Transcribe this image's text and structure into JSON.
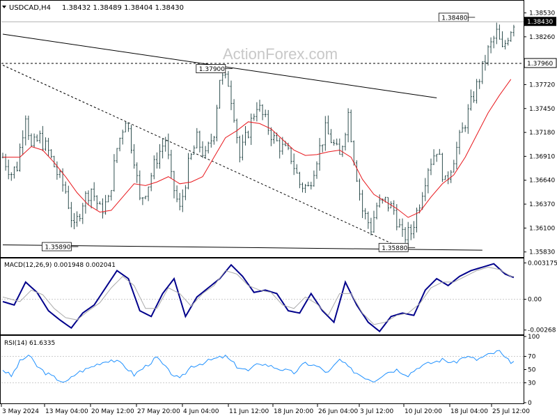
{
  "header": {
    "symbol": "USDCAD,H4",
    "ohlc": "1.38432 1.38489 1.38404 1.38430",
    "dropdown_icon": "triangle-down-icon"
  },
  "watermark": "ActionForex.com",
  "colors": {
    "candle": "#2f4f4f",
    "ma": "#e8171c",
    "macd": "#00008b",
    "signal": "#a9a9a9",
    "rsi": "#1e90ff",
    "level_line": "#000000"
  },
  "chart_data": [
    {
      "type": "candlestick",
      "title": "USDCAD,H4",
      "x_ticks": [
        "3 May 2024",
        "13 May 04:00",
        "20 May 12:00",
        "27 May 20:00",
        "4 Jun 04:00",
        "11 Jun 12:00",
        "18 Jun 20:00",
        "26 Jun 04:00",
        "3 Jul 12:00",
        "10 Jul 20:00",
        "18 Jul 04:00",
        "25 Jul 12:00"
      ],
      "y_ticks": [
        "1.38530",
        "1.38260",
        "1.37720",
        "1.37450",
        "1.37180",
        "1.36910",
        "1.36640",
        "1.36370",
        "1.36100",
        "1.35830"
      ],
      "ylim": [
        1.3578,
        1.3866
      ],
      "price_tag": "1.38430",
      "current_price": 1.3843,
      "hline": {
        "value": 1.3796,
        "label": "1.37960"
      },
      "annotations": [
        {
          "label": "1.38480",
          "x": 163,
          "price": 1.3848
        },
        {
          "label": "1.37900",
          "x": 78,
          "price": 1.379
        },
        {
          "label": "1.35890",
          "x": 24,
          "price": 1.3589
        },
        {
          "label": "1.35880",
          "x": 142,
          "price": 1.3588
        }
      ],
      "trendlines": [
        {
          "style": "solid",
          "points": [
            [
              0,
              1.3829
            ],
            [
              152,
              1.3757
            ]
          ]
        },
        {
          "style": "dashed",
          "points": [
            [
              0,
              1.3794
            ],
            [
              138,
              1.359
            ]
          ]
        },
        {
          "style": "solid",
          "points": [
            [
              0,
              1.3591
            ],
            [
              168,
              1.3585
            ]
          ]
        }
      ],
      "close_path": [
        [
          0,
          1.369
        ],
        [
          3,
          1.3672
        ],
        [
          5,
          1.368
        ],
        [
          8,
          1.374
        ],
        [
          10,
          1.37
        ],
        [
          13,
          1.3712
        ],
        [
          16,
          1.3696
        ],
        [
          19,
          1.3672
        ],
        [
          22,
          1.3652
        ],
        [
          25,
          1.3608
        ],
        [
          28,
          1.364
        ],
        [
          31,
          1.3655
        ],
        [
          34,
          1.363
        ],
        [
          37,
          1.364
        ],
        [
          40,
          1.37
        ],
        [
          43,
          1.3735
        ],
        [
          46,
          1.369
        ],
        [
          48,
          1.364
        ],
        [
          51,
          1.366
        ],
        [
          54,
          1.369
        ],
        [
          57,
          1.371
        ],
        [
          59,
          1.3665
        ],
        [
          62,
          1.363
        ],
        [
          65,
          1.368
        ],
        [
          68,
          1.371
        ],
        [
          71,
          1.369
        ],
        [
          74,
          1.372
        ],
        [
          76,
          1.378
        ],
        [
          79,
          1.3775
        ],
        [
          81,
          1.374
        ],
        [
          83,
          1.369
        ],
        [
          86,
          1.372
        ],
        [
          89,
          1.375
        ],
        [
          92,
          1.373
        ],
        [
          95,
          1.371
        ],
        [
          98,
          1.37
        ],
        [
          101,
          1.369
        ],
        [
          104,
          1.366
        ],
        [
          107,
          1.3655
        ],
        [
          110,
          1.369
        ],
        [
          113,
          1.372
        ],
        [
          115,
          1.371
        ],
        [
          118,
          1.369
        ],
        [
          121,
          1.374
        ],
        [
          123,
          1.369
        ],
        [
          126,
          1.363
        ],
        [
          129,
          1.361
        ],
        [
          131,
          1.3635
        ],
        [
          134,
          1.364
        ],
        [
          137,
          1.363
        ],
        [
          140,
          1.36
        ],
        [
          143,
          1.3605
        ],
        [
          146,
          1.364
        ],
        [
          149,
          1.368
        ],
        [
          152,
          1.37
        ],
        [
          155,
          1.366
        ],
        [
          157,
          1.368
        ],
        [
          160,
          1.371
        ],
        [
          163,
          1.374
        ],
        [
          166,
          1.377
        ],
        [
          168,
          1.379
        ],
        [
          170,
          1.381
        ],
        [
          173,
          1.383
        ],
        [
          175,
          1.381
        ],
        [
          177,
          1.3828
        ],
        [
          179,
          1.3843
        ]
      ],
      "ma_path": [
        [
          0,
          1.369
        ],
        [
          6,
          1.369
        ],
        [
          10,
          1.3702
        ],
        [
          14,
          1.3698
        ],
        [
          18,
          1.3684
        ],
        [
          22,
          1.3668
        ],
        [
          26,
          1.365
        ],
        [
          30,
          1.3636
        ],
        [
          34,
          1.3628
        ],
        [
          38,
          1.363
        ],
        [
          42,
          1.3645
        ],
        [
          46,
          1.366
        ],
        [
          50,
          1.3658
        ],
        [
          54,
          1.3662
        ],
        [
          58,
          1.3668
        ],
        [
          62,
          1.366
        ],
        [
          66,
          1.3662
        ],
        [
          70,
          1.3668
        ],
        [
          74,
          1.369
        ],
        [
          78,
          1.3712
        ],
        [
          82,
          1.372
        ],
        [
          86,
          1.373
        ],
        [
          90,
          1.3728
        ],
        [
          94,
          1.3722
        ],
        [
          98,
          1.371
        ],
        [
          102,
          1.3698
        ],
        [
          106,
          1.3692
        ],
        [
          110,
          1.3693
        ],
        [
          114,
          1.3696
        ],
        [
          118,
          1.3698
        ],
        [
          122,
          1.369
        ],
        [
          126,
          1.3665
        ],
        [
          130,
          1.3648
        ],
        [
          134,
          1.364
        ],
        [
          138,
          1.3632
        ],
        [
          142,
          1.3622
        ],
        [
          146,
          1.3628
        ],
        [
          150,
          1.3645
        ],
        [
          154,
          1.366
        ],
        [
          158,
          1.367
        ],
        [
          162,
          1.369
        ],
        [
          166,
          1.3715
        ],
        [
          170,
          1.374
        ],
        [
          174,
          1.376
        ],
        [
          178,
          1.3778
        ]
      ]
    },
    {
      "type": "line",
      "title": "MACD(12,26,9) 0.001948 0.002041",
      "y_ticks": [
        "0.003175",
        "0.00",
        "-0.00268"
      ],
      "ylim": [
        -0.003,
        0.0035
      ],
      "series": [
        {
          "name": "MACD",
          "color": "#00008b",
          "values": [
            [
              0,
              -0.0002
            ],
            [
              4,
              -0.0005
            ],
            [
              8,
              0.0015
            ],
            [
              12,
              0.0006
            ],
            [
              16,
              -0.001
            ],
            [
              20,
              -0.0018
            ],
            [
              24,
              -0.0025
            ],
            [
              28,
              -0.0012
            ],
            [
              32,
              -0.0005
            ],
            [
              36,
              0.001
            ],
            [
              40,
              0.0025
            ],
            [
              44,
              0.0018
            ],
            [
              48,
              -0.001
            ],
            [
              52,
              -0.0015
            ],
            [
              56,
              0.0005
            ],
            [
              60,
              0.0018
            ],
            [
              64,
              -0.0015
            ],
            [
              68,
              0.0002
            ],
            [
              72,
              0.001
            ],
            [
              76,
              0.0018
            ],
            [
              80,
              0.003
            ],
            [
              84,
              0.002
            ],
            [
              88,
              0.0006
            ],
            [
              92,
              0.0008
            ],
            [
              96,
              0.0005
            ],
            [
              100,
              -0.001
            ],
            [
              104,
              -0.0012
            ],
            [
              108,
              0.0005
            ],
            [
              112,
              -0.001
            ],
            [
              116,
              -0.002
            ],
            [
              120,
              0.0015
            ],
            [
              124,
              -0.0005
            ],
            [
              128,
              -0.002
            ],
            [
              132,
              -0.0028
            ],
            [
              136,
              -0.0015
            ],
            [
              140,
              -0.0012
            ],
            [
              144,
              -0.0014
            ],
            [
              148,
              0.0008
            ],
            [
              152,
              0.0018
            ],
            [
              156,
              0.0012
            ],
            [
              160,
              0.002
            ],
            [
              164,
              0.0025
            ],
            [
              168,
              0.0028
            ],
            [
              172,
              0.0031
            ],
            [
              176,
              0.0022
            ],
            [
              179,
              0.0019
            ]
          ]
        },
        {
          "name": "Signal",
          "color": "#a9a9a9",
          "values": [
            [
              0,
              0.0002
            ],
            [
              6,
              -0.0002
            ],
            [
              10,
              0.0008
            ],
            [
              14,
              0.0004
            ],
            [
              18,
              -0.0008
            ],
            [
              22,
              -0.0016
            ],
            [
              26,
              -0.0018
            ],
            [
              30,
              -0.001
            ],
            [
              34,
              -0.0003
            ],
            [
              38,
              0.001
            ],
            [
              42,
              0.002
            ],
            [
              46,
              0.0012
            ],
            [
              50,
              -0.0008
            ],
            [
              54,
              -0.0008
            ],
            [
              58,
              0.001
            ],
            [
              62,
              0.0005
            ],
            [
              66,
              -0.0006
            ],
            [
              70,
              0.0005
            ],
            [
              74,
              0.0012
            ],
            [
              78,
              0.0025
            ],
            [
              82,
              0.0022
            ],
            [
              86,
              0.0012
            ],
            [
              90,
              0.0008
            ],
            [
              94,
              0.0006
            ],
            [
              98,
              -0.0005
            ],
            [
              102,
              -0.0008
            ],
            [
              106,
              0.0002
            ],
            [
              110,
              -0.0004
            ],
            [
              114,
              -0.0014
            ],
            [
              118,
              0.0005
            ],
            [
              122,
              0.0005
            ],
            [
              126,
              -0.0012
            ],
            [
              130,
              -0.0022
            ],
            [
              134,
              -0.002
            ],
            [
              138,
              -0.0014
            ],
            [
              142,
              -0.0012
            ],
            [
              146,
              -0.0004
            ],
            [
              150,
              0.001
            ],
            [
              154,
              0.0015
            ],
            [
              158,
              0.0015
            ],
            [
              162,
              0.002
            ],
            [
              166,
              0.0025
            ],
            [
              170,
              0.0028
            ],
            [
              174,
              0.0026
            ],
            [
              178,
              0.002
            ]
          ]
        }
      ]
    },
    {
      "type": "line",
      "title": "RSI(14) 61.6335",
      "y_ticks": [
        "100",
        "70",
        "50",
        "30",
        "0"
      ],
      "ylim": [
        0,
        100
      ],
      "series": [
        {
          "name": "RSI",
          "color": "#1e90ff",
          "values": [
            [
              0,
              50
            ],
            [
              3,
              40
            ],
            [
              6,
              62
            ],
            [
              9,
              72
            ],
            [
              12,
              55
            ],
            [
              15,
              45
            ],
            [
              18,
              38
            ],
            [
              22,
              30
            ],
            [
              26,
              45
            ],
            [
              30,
              52
            ],
            [
              34,
              60
            ],
            [
              38,
              65
            ],
            [
              42,
              58
            ],
            [
              46,
              42
            ],
            [
              50,
              55
            ],
            [
              54,
              68
            ],
            [
              58,
              48
            ],
            [
              62,
              35
            ],
            [
              66,
              55
            ],
            [
              70,
              60
            ],
            [
              74,
              66
            ],
            [
              78,
              70
            ],
            [
              82,
              55
            ],
            [
              86,
              48
            ],
            [
              90,
              60
            ],
            [
              94,
              55
            ],
            [
              98,
              50
            ],
            [
              102,
              45
            ],
            [
              106,
              60
            ],
            [
              110,
              55
            ],
            [
              114,
              45
            ],
            [
              118,
              65
            ],
            [
              122,
              50
            ],
            [
              126,
              40
            ],
            [
              130,
              33
            ],
            [
              134,
              45
            ],
            [
              138,
              50
            ],
            [
              142,
              42
            ],
            [
              146,
              55
            ],
            [
              150,
              60
            ],
            [
              154,
              65
            ],
            [
              158,
              60
            ],
            [
              162,
              70
            ],
            [
              166,
              65
            ],
            [
              170,
              72
            ],
            [
              174,
              78
            ],
            [
              176,
              66
            ],
            [
              178,
              62
            ]
          ]
        }
      ]
    }
  ]
}
